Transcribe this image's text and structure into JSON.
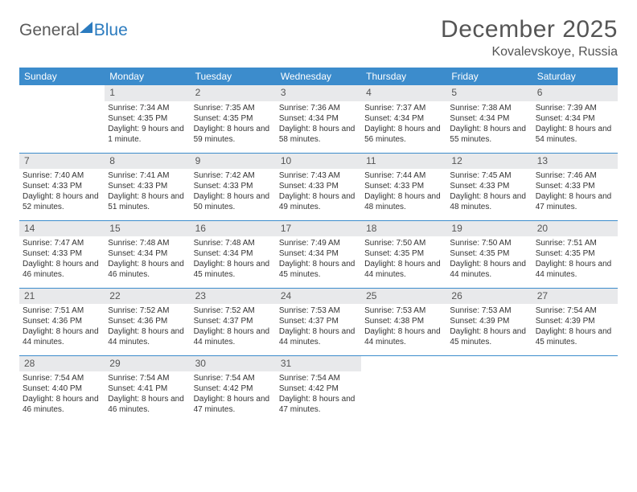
{
  "logo": {
    "word1": "General",
    "word2": "Blue"
  },
  "title": "December 2025",
  "location": "Kovalevskoye, Russia",
  "colors": {
    "header_bg": "#3c8ccc",
    "header_fg": "#ffffff",
    "daynum_bg": "#e8e9eb",
    "rule": "#3c8ccc",
    "text": "#333333",
    "title_fg": "#555555",
    "logo_gray": "#5a5a5a",
    "logo_blue": "#2b7bbf"
  },
  "headers": [
    "Sunday",
    "Monday",
    "Tuesday",
    "Wednesday",
    "Thursday",
    "Friday",
    "Saturday"
  ],
  "weeks": [
    [
      {
        "empty": true
      },
      {
        "n": "1",
        "sr": "7:34 AM",
        "ss": "4:35 PM",
        "dl": "9 hours and 1 minute."
      },
      {
        "n": "2",
        "sr": "7:35 AM",
        "ss": "4:35 PM",
        "dl": "8 hours and 59 minutes."
      },
      {
        "n": "3",
        "sr": "7:36 AM",
        "ss": "4:34 PM",
        "dl": "8 hours and 58 minutes."
      },
      {
        "n": "4",
        "sr": "7:37 AM",
        "ss": "4:34 PM",
        "dl": "8 hours and 56 minutes."
      },
      {
        "n": "5",
        "sr": "7:38 AM",
        "ss": "4:34 PM",
        "dl": "8 hours and 55 minutes."
      },
      {
        "n": "6",
        "sr": "7:39 AM",
        "ss": "4:34 PM",
        "dl": "8 hours and 54 minutes."
      }
    ],
    [
      {
        "n": "7",
        "sr": "7:40 AM",
        "ss": "4:33 PM",
        "dl": "8 hours and 52 minutes."
      },
      {
        "n": "8",
        "sr": "7:41 AM",
        "ss": "4:33 PM",
        "dl": "8 hours and 51 minutes."
      },
      {
        "n": "9",
        "sr": "7:42 AM",
        "ss": "4:33 PM",
        "dl": "8 hours and 50 minutes."
      },
      {
        "n": "10",
        "sr": "7:43 AM",
        "ss": "4:33 PM",
        "dl": "8 hours and 49 minutes."
      },
      {
        "n": "11",
        "sr": "7:44 AM",
        "ss": "4:33 PM",
        "dl": "8 hours and 48 minutes."
      },
      {
        "n": "12",
        "sr": "7:45 AM",
        "ss": "4:33 PM",
        "dl": "8 hours and 48 minutes."
      },
      {
        "n": "13",
        "sr": "7:46 AM",
        "ss": "4:33 PM",
        "dl": "8 hours and 47 minutes."
      }
    ],
    [
      {
        "n": "14",
        "sr": "7:47 AM",
        "ss": "4:33 PM",
        "dl": "8 hours and 46 minutes."
      },
      {
        "n": "15",
        "sr": "7:48 AM",
        "ss": "4:34 PM",
        "dl": "8 hours and 46 minutes."
      },
      {
        "n": "16",
        "sr": "7:48 AM",
        "ss": "4:34 PM",
        "dl": "8 hours and 45 minutes."
      },
      {
        "n": "17",
        "sr": "7:49 AM",
        "ss": "4:34 PM",
        "dl": "8 hours and 45 minutes."
      },
      {
        "n": "18",
        "sr": "7:50 AM",
        "ss": "4:35 PM",
        "dl": "8 hours and 44 minutes."
      },
      {
        "n": "19",
        "sr": "7:50 AM",
        "ss": "4:35 PM",
        "dl": "8 hours and 44 minutes."
      },
      {
        "n": "20",
        "sr": "7:51 AM",
        "ss": "4:35 PM",
        "dl": "8 hours and 44 minutes."
      }
    ],
    [
      {
        "n": "21",
        "sr": "7:51 AM",
        "ss": "4:36 PM",
        "dl": "8 hours and 44 minutes."
      },
      {
        "n": "22",
        "sr": "7:52 AM",
        "ss": "4:36 PM",
        "dl": "8 hours and 44 minutes."
      },
      {
        "n": "23",
        "sr": "7:52 AM",
        "ss": "4:37 PM",
        "dl": "8 hours and 44 minutes."
      },
      {
        "n": "24",
        "sr": "7:53 AM",
        "ss": "4:37 PM",
        "dl": "8 hours and 44 minutes."
      },
      {
        "n": "25",
        "sr": "7:53 AM",
        "ss": "4:38 PM",
        "dl": "8 hours and 44 minutes."
      },
      {
        "n": "26",
        "sr": "7:53 AM",
        "ss": "4:39 PM",
        "dl": "8 hours and 45 minutes."
      },
      {
        "n": "27",
        "sr": "7:54 AM",
        "ss": "4:39 PM",
        "dl": "8 hours and 45 minutes."
      }
    ],
    [
      {
        "n": "28",
        "sr": "7:54 AM",
        "ss": "4:40 PM",
        "dl": "8 hours and 46 minutes."
      },
      {
        "n": "29",
        "sr": "7:54 AM",
        "ss": "4:41 PM",
        "dl": "8 hours and 46 minutes."
      },
      {
        "n": "30",
        "sr": "7:54 AM",
        "ss": "4:42 PM",
        "dl": "8 hours and 47 minutes."
      },
      {
        "n": "31",
        "sr": "7:54 AM",
        "ss": "4:42 PM",
        "dl": "8 hours and 47 minutes."
      },
      {
        "empty": true
      },
      {
        "empty": true
      },
      {
        "empty": true
      }
    ]
  ],
  "labels": {
    "sunrise": "Sunrise:",
    "sunset": "Sunset:",
    "daylight": "Daylight:"
  }
}
